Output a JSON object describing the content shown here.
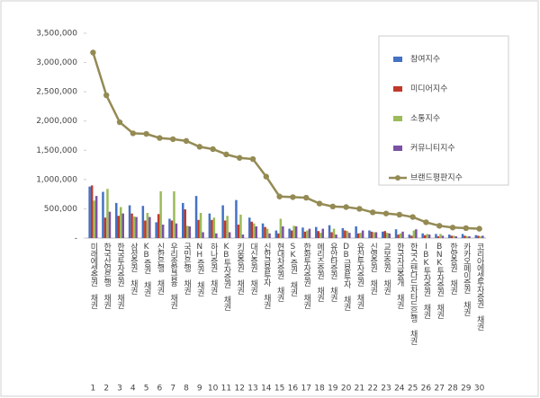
{
  "chart_data": {
    "type": "bar-line",
    "categories": [
      "미래에셋증권 채권",
      "한국산업은행 채권",
      "한국투자증권 채권",
      "삼성증권 채권",
      "KB증권 채권",
      "신한은행 채권",
      "우리종합금융 채권",
      "국민은행 채권",
      "NH증권 채권",
      "하나증권 채권",
      "KB투자증권 채권",
      "키움증권 채권",
      "대신증권 채권",
      "신한금융투자 채권",
      "현대차증권 채권",
      "SK증권 채권",
      "한화투자증권 채권",
      "메리츠증권 채권",
      "유안타증권 채권",
      "DB금융투자 채권",
      "유진투자증권 채권",
      "신영증권 채권",
      "교보증권 채권",
      "한국자금중개 채권",
      "한국스탠다드차타드은행 채권",
      "IBK투자증권 채권",
      "BNK투자증권 채권",
      "한양증권 채권",
      "카카오페이증권 채권",
      "코리아에셋투자증권 채권"
    ],
    "ranks": [
      1,
      2,
      3,
      4,
      5,
      6,
      7,
      8,
      9,
      10,
      11,
      12,
      13,
      14,
      15,
      16,
      17,
      18,
      19,
      20,
      21,
      22,
      23,
      24,
      25,
      26,
      27,
      28,
      29,
      30
    ],
    "series": [
      {
        "name": "참여지수",
        "kind": "bar",
        "color": "#4472c4",
        "values": [
          880000,
          790000,
          600000,
          560000,
          550000,
          270000,
          330000,
          600000,
          720000,
          420000,
          560000,
          650000,
          350000,
          250000,
          130000,
          160000,
          180000,
          190000,
          220000,
          170000,
          200000,
          130000,
          110000,
          150000,
          60000,
          80000,
          70000,
          60000,
          70000,
          50000
        ]
      },
      {
        "name": "미디어지수",
        "kind": "bar",
        "color": "#c0392b",
        "values": [
          900000,
          350000,
          380000,
          420000,
          300000,
          410000,
          300000,
          490000,
          310000,
          310000,
          300000,
          230000,
          280000,
          190000,
          80000,
          130000,
          110000,
          120000,
          100000,
          130000,
          80000,
          110000,
          120000,
          60000,
          40000,
          50000,
          30000,
          40000,
          40000,
          40000
        ]
      },
      {
        "name": "소통지수",
        "kind": "bar",
        "color": "#9bbb59",
        "values": [
          640000,
          840000,
          530000,
          370000,
          430000,
          800000,
          800000,
          210000,
          430000,
          350000,
          380000,
          400000,
          250000,
          160000,
          330000,
          210000,
          130000,
          90000,
          160000,
          120000,
          90000,
          100000,
          90000,
          80000,
          130000,
          70000,
          70000,
          40000,
          30000,
          30000
        ]
      },
      {
        "name": "커뮤니티지수",
        "kind": "bar",
        "color": "#7b52a3",
        "values": [
          720000,
          450000,
          420000,
          360000,
          360000,
          230000,
          250000,
          200000,
          100000,
          80000,
          100000,
          60000,
          200000,
          80000,
          200000,
          200000,
          160000,
          160000,
          60000,
          90000,
          130000,
          100000,
          80000,
          110000,
          150000,
          60000,
          40000,
          30000,
          30000,
          40000
        ]
      },
      {
        "name": "브랜드평판지수",
        "kind": "line",
        "color": "#948a54",
        "values": [
          3170000,
          2440000,
          1980000,
          1790000,
          1780000,
          1710000,
          1690000,
          1660000,
          1560000,
          1520000,
          1430000,
          1370000,
          1350000,
          1050000,
          710000,
          700000,
          690000,
          590000,
          540000,
          530000,
          500000,
          440000,
          420000,
          400000,
          360000,
          270000,
          210000,
          180000,
          170000,
          160000
        ]
      }
    ],
    "ylim": [
      0,
      3500000
    ],
    "yticks": [
      {
        "value": 0,
        "label": "-"
      },
      {
        "value": 500000,
        "label": "500,000"
      },
      {
        "value": 1000000,
        "label": "1,000,000"
      },
      {
        "value": 1500000,
        "label": "1,500,000"
      },
      {
        "value": 2000000,
        "label": "2,000,000"
      },
      {
        "value": 2500000,
        "label": "2,500,000"
      },
      {
        "value": 3000000,
        "label": "3,000,000"
      },
      {
        "value": 3500000,
        "label": "3,500,000"
      }
    ],
    "grid": false,
    "legend": "top-right"
  }
}
